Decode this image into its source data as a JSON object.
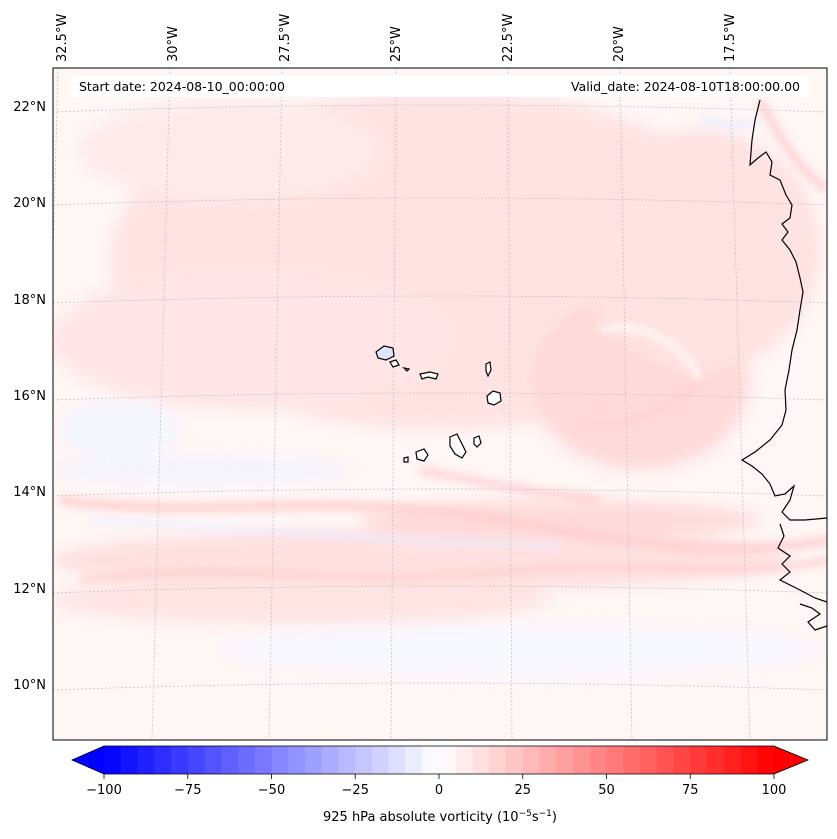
{
  "header": {
    "start_label": "Start date: 2024-08-10_00:00:00",
    "valid_label": "Valid_date: 2024-08-10T18:00:00.00"
  },
  "map": {
    "projection": "conic",
    "extent": {
      "lon": [
        -32.5,
        -15.5
      ],
      "lat": [
        9,
        22.7
      ]
    },
    "lon_ticks": [
      "32.5°W",
      "30°W",
      "27.5°W",
      "25°W",
      "22.5°W",
      "20°W",
      "17.5°W"
    ],
    "lat_ticks": [
      "22°N",
      "20°N",
      "18°N",
      "16°N",
      "14°N",
      "12°N",
      "10°N"
    ],
    "gridlines": true,
    "features": [
      "coastline-west-africa",
      "cape-verde-islands"
    ]
  },
  "colorbar": {
    "label": "925 hPa absolute vorticity (10",
    "label_exp1": "−5",
    "label_mid": "s",
    "label_exp2": "−1",
    "label_close": ")",
    "tick_labels": [
      "−100",
      "−75",
      "−50",
      "−25",
      "0",
      "25",
      "50",
      "75",
      "100"
    ],
    "range": [
      -100,
      100
    ],
    "cmap": "bwr",
    "extend": "both",
    "low_color": "#0000ff",
    "mid_color": "#ffffff",
    "high_color": "#ff0000"
  }
}
